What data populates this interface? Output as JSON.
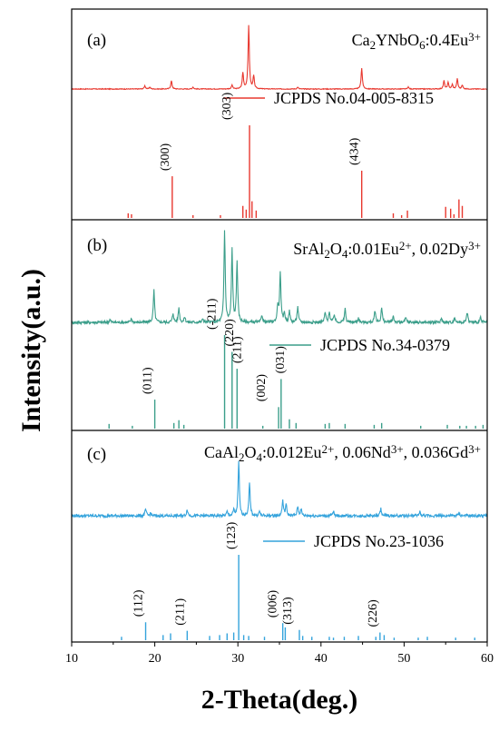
{
  "chart_data": {
    "type": "line",
    "xlabel": "2-Theta(deg.)",
    "ylabel": "Intensity(a.u.)",
    "xlim": [
      10,
      60
    ],
    "xticks": [
      "10",
      "20",
      "30",
      "40",
      "50",
      "60"
    ],
    "grid": false,
    "panels": [
      {
        "letter": "(a)",
        "formula": {
          "parts": [
            {
              "t": "Ca"
            },
            {
              "t": "2",
              "s": "sub"
            },
            {
              "t": "YNbO"
            },
            {
              "t": "6",
              "s": "sub"
            },
            {
              "t": ":0.4Eu"
            },
            {
              "t": "3+",
              "s": "sup"
            }
          ]
        },
        "legend": "JCPDS No.04-005-8315",
        "sample_color": "#e8382f",
        "reference_color": "#e8382f",
        "sample_peaks": [
          [
            18.8,
            0.05
          ],
          [
            19.4,
            0.03
          ],
          [
            22.0,
            0.13
          ],
          [
            24.6,
            0.03
          ],
          [
            29.3,
            0.06
          ],
          [
            30.6,
            0.25
          ],
          [
            31.3,
            1.0
          ],
          [
            31.9,
            0.2
          ],
          [
            37.2,
            0.03
          ],
          [
            44.9,
            0.33
          ],
          [
            50.5,
            0.03
          ],
          [
            54.8,
            0.13
          ],
          [
            55.3,
            0.1
          ],
          [
            55.8,
            0.07
          ],
          [
            56.4,
            0.16
          ],
          [
            57.0,
            0.06
          ]
        ],
        "reference_lines": [
          [
            16.8,
            0.05
          ],
          [
            17.2,
            0.04
          ],
          [
            22.1,
            0.45
          ],
          [
            24.6,
            0.03
          ],
          [
            27.9,
            0.03
          ],
          [
            30.6,
            0.13
          ],
          [
            31.0,
            0.09
          ],
          [
            31.4,
            1.0
          ],
          [
            31.7,
            0.18
          ],
          [
            32.2,
            0.08
          ],
          [
            44.9,
            0.51
          ],
          [
            48.7,
            0.05
          ],
          [
            49.7,
            0.03
          ],
          [
            50.4,
            0.08
          ],
          [
            55.0,
            0.12
          ],
          [
            55.6,
            0.1
          ],
          [
            56.0,
            0.04
          ],
          [
            56.6,
            0.2
          ],
          [
            57.0,
            0.13
          ]
        ],
        "hkl_labels": [
          {
            "label": "(300)",
            "x": 22.1
          },
          {
            "label": "(303)",
            "x": 31.4
          },
          {
            "label": "(434)",
            "x": 44.9
          }
        ]
      },
      {
        "letter": "(b)",
        "formula": {
          "parts": [
            {
              "t": "SrAl"
            },
            {
              "t": "2",
              "s": "sub"
            },
            {
              "t": "O"
            },
            {
              "t": "4",
              "s": "sub"
            },
            {
              "t": ":0.01Eu"
            },
            {
              "t": "2+",
              "s": "sup"
            },
            {
              "t": ", 0.02Dy"
            },
            {
              "t": "3+",
              "s": "sup"
            }
          ]
        },
        "legend": "JCPDS No.34-0379",
        "sample_color": "#3b9e8a",
        "reference_color": "#3b9e8a",
        "sample_peaks": [
          [
            14.6,
            0.03
          ],
          [
            17.2,
            0.04
          ],
          [
            19.9,
            0.35
          ],
          [
            22.2,
            0.1
          ],
          [
            22.9,
            0.16
          ],
          [
            23.6,
            0.06
          ],
          [
            25.8,
            0.04
          ],
          [
            28.4,
            1.0
          ],
          [
            29.3,
            0.79
          ],
          [
            29.9,
            0.67
          ],
          [
            32.9,
            0.08
          ],
          [
            34.8,
            0.18
          ],
          [
            35.1,
            0.55
          ],
          [
            35.6,
            0.1
          ],
          [
            36.2,
            0.12
          ],
          [
            37.2,
            0.17
          ],
          [
            40.5,
            0.11
          ],
          [
            41.0,
            0.12
          ],
          [
            41.6,
            0.09
          ],
          [
            42.9,
            0.15
          ],
          [
            44.5,
            0.05
          ],
          [
            46.5,
            0.13
          ],
          [
            47.3,
            0.16
          ],
          [
            48.7,
            0.07
          ],
          [
            50.2,
            0.05
          ],
          [
            54.5,
            0.04
          ],
          [
            56.1,
            0.05
          ],
          [
            57.6,
            0.11
          ],
          [
            59.2,
            0.05
          ]
        ],
        "reference_lines": [
          [
            14.5,
            0.05
          ],
          [
            17.3,
            0.03
          ],
          [
            20.0,
            0.31
          ],
          [
            22.3,
            0.06
          ],
          [
            22.9,
            0.09
          ],
          [
            23.5,
            0.04
          ],
          [
            28.4,
            1.0
          ],
          [
            29.3,
            0.82
          ],
          [
            29.9,
            0.64
          ],
          [
            33.0,
            0.03
          ],
          [
            34.9,
            0.23
          ],
          [
            35.2,
            0.53
          ],
          [
            36.2,
            0.1
          ],
          [
            37.0,
            0.06
          ],
          [
            40.5,
            0.05
          ],
          [
            41.0,
            0.06
          ],
          [
            42.9,
            0.05
          ],
          [
            46.4,
            0.04
          ],
          [
            47.3,
            0.06
          ],
          [
            52.0,
            0.03
          ],
          [
            55.2,
            0.04
          ],
          [
            56.7,
            0.03
          ],
          [
            57.5,
            0.03
          ],
          [
            58.6,
            0.03
          ],
          [
            59.5,
            0.04
          ]
        ],
        "hkl_labels": [
          {
            "label": "(011)",
            "x": 20.0
          },
          {
            "label": "(-211)",
            "x": 28.4
          },
          {
            "label": "(220)",
            "x": 29.3
          },
          {
            "label": "(211)",
            "x": 29.9
          },
          {
            "label": "(002)",
            "x": 34.9
          },
          {
            "label": "(031)",
            "x": 35.2
          }
        ]
      },
      {
        "letter": "(c)",
        "formula": {
          "parts": [
            {
              "t": "CaAl"
            },
            {
              "t": "2",
              "s": "sub"
            },
            {
              "t": "O"
            },
            {
              "t": "4",
              "s": "sub"
            },
            {
              "t": ":0.012Eu"
            },
            {
              "t": "2+",
              "s": "sup"
            },
            {
              "t": ", 0.06Nd"
            },
            {
              "t": "3+",
              "s": "sup"
            },
            {
              "t": ", 0.036Gd"
            },
            {
              "t": "3+",
              "s": "sup"
            }
          ]
        },
        "legend": "JCPDS No.23-1036",
        "sample_color": "#34a3dc",
        "reference_color": "#34a3dc",
        "sample_peaks": [
          [
            18.9,
            0.12
          ],
          [
            19.5,
            0.05
          ],
          [
            23.9,
            0.12
          ],
          [
            28.7,
            0.07
          ],
          [
            29.5,
            0.1
          ],
          [
            30.1,
            1.0
          ],
          [
            31.4,
            0.6
          ],
          [
            32.6,
            0.08
          ],
          [
            35.4,
            0.28
          ],
          [
            35.8,
            0.21
          ],
          [
            37.2,
            0.17
          ],
          [
            37.6,
            0.12
          ],
          [
            41.5,
            0.08
          ],
          [
            47.2,
            0.13
          ],
          [
            51.9,
            0.07
          ],
          [
            56.6,
            0.05
          ]
        ],
        "reference_lines": [
          [
            16.0,
            0.04
          ],
          [
            18.9,
            0.21
          ],
          [
            21.0,
            0.06
          ],
          [
            21.9,
            0.08
          ],
          [
            23.9,
            0.11
          ],
          [
            26.6,
            0.05
          ],
          [
            27.8,
            0.06
          ],
          [
            28.7,
            0.08
          ],
          [
            29.5,
            0.09
          ],
          [
            30.1,
            1.0
          ],
          [
            30.7,
            0.06
          ],
          [
            31.3,
            0.05
          ],
          [
            33.2,
            0.04
          ],
          [
            35.4,
            0.2
          ],
          [
            35.7,
            0.15
          ],
          [
            37.4,
            0.12
          ],
          [
            37.8,
            0.05
          ],
          [
            38.9,
            0.04
          ],
          [
            41.0,
            0.04
          ],
          [
            41.5,
            0.03
          ],
          [
            42.8,
            0.04
          ],
          [
            44.5,
            0.05
          ],
          [
            46.6,
            0.04
          ],
          [
            47.1,
            0.09
          ],
          [
            47.6,
            0.06
          ],
          [
            48.8,
            0.03
          ],
          [
            51.7,
            0.03
          ],
          [
            52.8,
            0.04
          ],
          [
            56.2,
            0.03
          ],
          [
            58.5,
            0.03
          ]
        ],
        "hkl_labels": [
          {
            "label": "(112)",
            "x": 18.9
          },
          {
            "label": "(211)",
            "x": 23.9
          },
          {
            "label": "(123)",
            "x": 30.1
          },
          {
            "label": "(006)",
            "x": 35.4
          },
          {
            "label": "(313)",
            "x": 37.4
          },
          {
            "label": "(226)",
            "x": 47.1
          }
        ]
      }
    ]
  }
}
